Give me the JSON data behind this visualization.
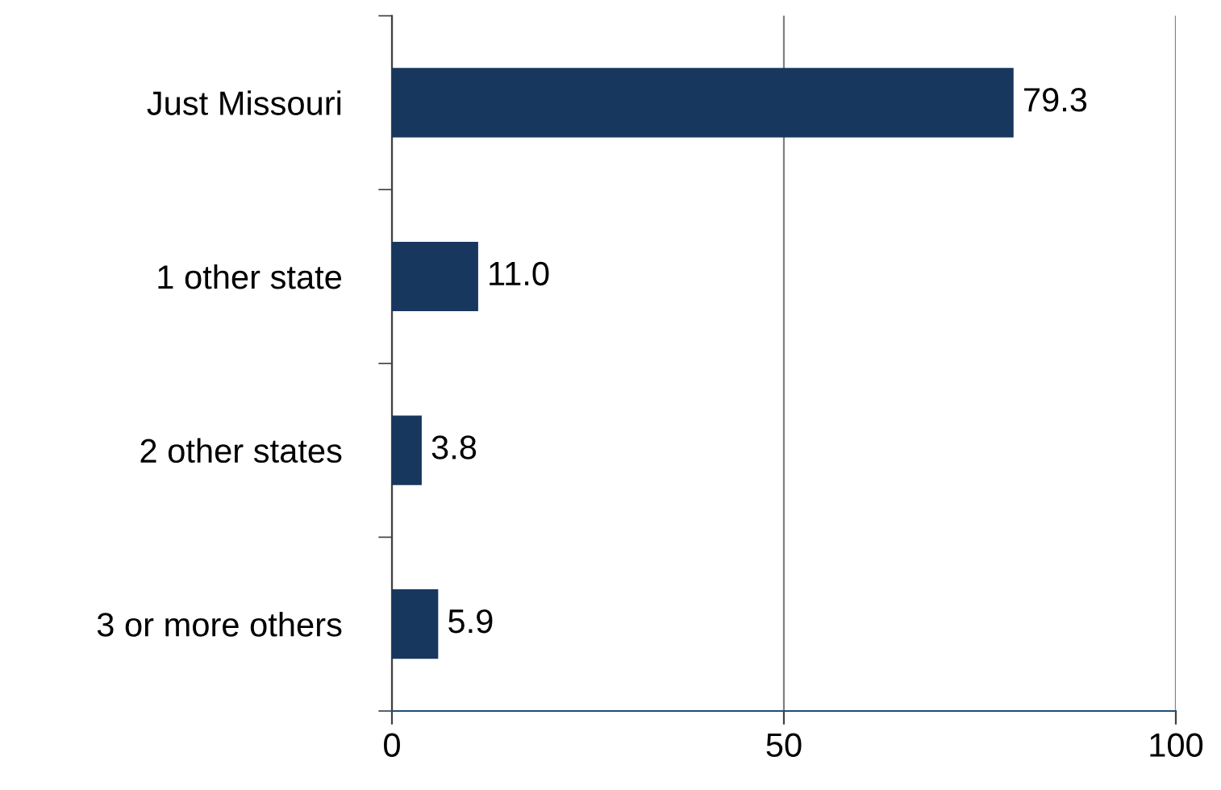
{
  "chart_data": {
    "type": "bar",
    "orientation": "horizontal",
    "categories": [
      "Just Missouri",
      "1 other state",
      "2 other states",
      "3 or more others"
    ],
    "values": [
      79.3,
      11.0,
      3.8,
      5.9
    ],
    "value_labels": [
      "79.3",
      "11.0",
      "3.8",
      "5.9"
    ],
    "color": "#17375e",
    "xlim": [
      0,
      100
    ],
    "xticks": [
      0,
      50,
      100
    ],
    "grid": "x",
    "legend": false
  }
}
